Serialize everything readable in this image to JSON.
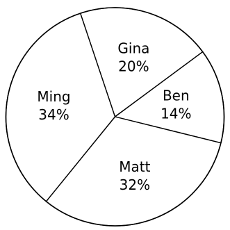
{
  "chart_data": {
    "type": "pie",
    "title": "",
    "slices": [
      {
        "label": "Gina",
        "value": 20,
        "value_label": "20%"
      },
      {
        "label": "Ben",
        "value": 14,
        "value_label": "14%"
      },
      {
        "label": "Matt",
        "value": 32,
        "value_label": "32%"
      },
      {
        "label": "Ming",
        "value": 34,
        "value_label": "34%"
      }
    ],
    "slice_fill": "#ffffff",
    "stroke_color": "#000000",
    "legend": "none"
  }
}
